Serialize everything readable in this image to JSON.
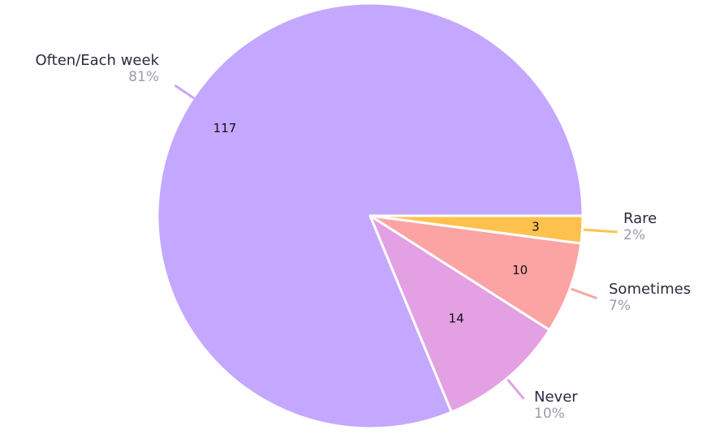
{
  "chart_data": {
    "type": "pie",
    "slices": [
      {
        "label": "Often/Each week",
        "value": 117,
        "percent_label": "81%",
        "color": "#c4a8ff"
      },
      {
        "label": "Rare",
        "value": 3,
        "percent_label": "2%",
        "color": "#ffc14d"
      },
      {
        "label": "Sometimes",
        "value": 10,
        "percent_label": "7%",
        "color": "#fca3a3"
      },
      {
        "label": "Never",
        "value": 14,
        "percent_label": "10%",
        "color": "#e3a0e3"
      }
    ],
    "label_color": "#2b2b3b",
    "percent_color": "#9b9bab",
    "value_color": "#111111"
  }
}
